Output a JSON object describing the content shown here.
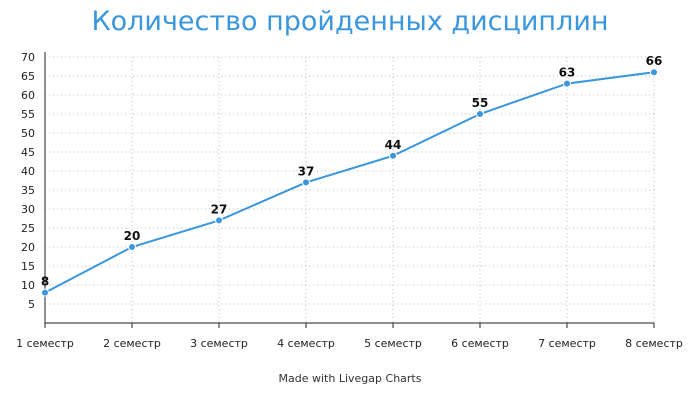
{
  "chart_data": {
    "type": "line",
    "title": "Количество пройденных дисциплин",
    "categories": [
      "1 семестр",
      "2 семестр",
      "3 семестр",
      "4 семестр",
      "5 семестр",
      "6 семестр",
      "7 семестр",
      "8 семестр"
    ],
    "series": [
      {
        "values": [
          8,
          20,
          27,
          37,
          44,
          55,
          63,
          66
        ],
        "color": "#3a96dd"
      }
    ],
    "ylim": [
      0,
      70
    ],
    "yticks": [
      5,
      10,
      15,
      20,
      25,
      30,
      35,
      40,
      45,
      50,
      55,
      60,
      65,
      70
    ],
    "grid": true,
    "data_labels": true
  },
  "footer": {
    "credit": "Made with Livegap Charts"
  }
}
